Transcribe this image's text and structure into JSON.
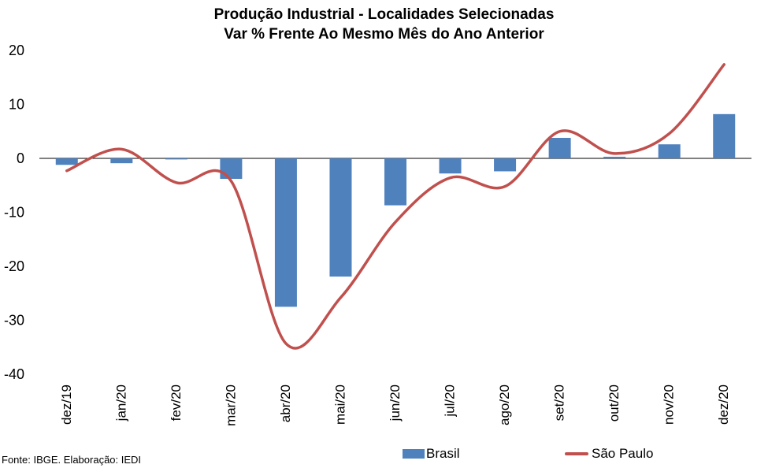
{
  "chart_data": {
    "type": "bar",
    "title": "Produção Industrial - Localidades Selecionadas",
    "subtitle": "Var % Frente Ao Mesmo Mês do Ano Anterior",
    "categories": [
      "dez/19",
      "jan/20",
      "fev/20",
      "mar/20",
      "abr/20",
      "mai/20",
      "jun/20",
      "jul/20",
      "ago/20",
      "set/20",
      "out/20",
      "nov/20",
      "dez/20"
    ],
    "ylim": [
      -40,
      20
    ],
    "yticks": [
      20,
      10,
      0,
      -10,
      -20,
      -30,
      -40
    ],
    "grid": false,
    "legend_position": "bottom",
    "series": [
      {
        "name": "Brasil",
        "kind": "bar",
        "color": "#4F81BD",
        "values": [
          -1.2,
          -0.9,
          -0.2,
          -3.8,
          -27.5,
          -21.9,
          -8.7,
          -2.8,
          -2.4,
          3.8,
          0.3,
          2.6,
          8.2
        ]
      },
      {
        "name": "São Paulo",
        "kind": "line",
        "smooth": true,
        "color": "#C0504D",
        "values": [
          -2.3,
          1.7,
          -4.5,
          -4.2,
          -34.3,
          -25.8,
          -11.8,
          -3.6,
          -5.2,
          5.0,
          0.9,
          4.6,
          17.4
        ]
      }
    ]
  },
  "source_note": "Fonte: IBGE. Elaboração: IEDI"
}
